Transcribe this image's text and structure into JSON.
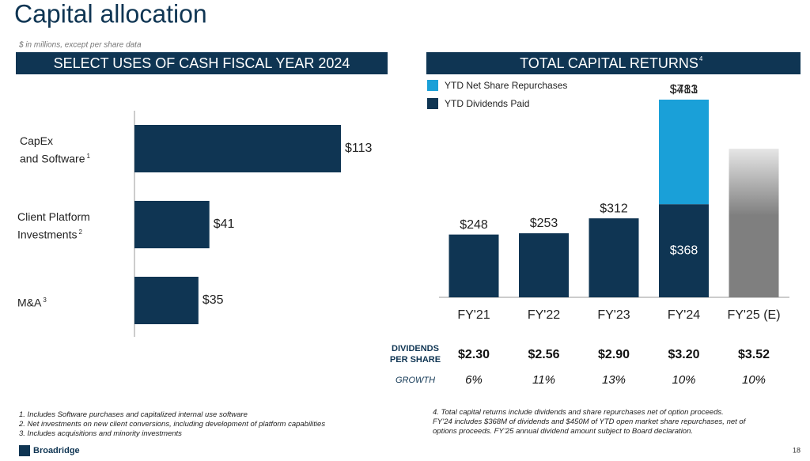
{
  "title": "Capital allocation",
  "subtitle": "$ in millions, except per share data",
  "chart_data": [
    {
      "type": "hbar",
      "title": "SELECT USES OF CASH FISCAL YEAR 2024",
      "categories": [
        "CapEx\nand Software",
        "Client Platform\nInvestments",
        "M&A"
      ],
      "category_notes": [
        "1",
        "2",
        "3"
      ],
      "values": [
        113,
        41,
        35
      ],
      "value_labels": [
        "$113",
        "$41",
        "$35"
      ],
      "color": "#0f3553"
    },
    {
      "type": "stacked_bar",
      "title": "TOTAL CAPITAL RETURNS",
      "title_note": "4",
      "categories": [
        "FY'21",
        "FY'22",
        "FY'23",
        "FY'24",
        "FY'25 (E)"
      ],
      "series": [
        {
          "name": "YTD Dividends Paid",
          "color": "#0f3553",
          "values": [
            248,
            253,
            312,
            368,
            null
          ],
          "value_labels": [
            "$248",
            "$253",
            "$312",
            "$368",
            null
          ]
        },
        {
          "name": "YTD Net Share Repurchases",
          "color": "#1aa0d8",
          "values": [
            null,
            null,
            null,
            413,
            null
          ],
          "value_labels": [
            null,
            null,
            null,
            "$413",
            null
          ]
        },
        {
          "color": "#808080",
          "values": [
            null,
            null,
            null,
            null,
            587
          ]
        }
      ],
      "totals": [
        null,
        null,
        null,
        781,
        null
      ],
      "total_labels": [
        null,
        null,
        null,
        "$781",
        null
      ],
      "legend": "top-left"
    }
  ],
  "dividends": {
    "label": "DIVIDENDS\nPER SHARE",
    "values": [
      "$2.30",
      "$2.56",
      "$2.90",
      "$3.20",
      "$3.52"
    ],
    "growth_label": "GROWTH",
    "growth": [
      "6%",
      "11%",
      "13%",
      "10%",
      "10%"
    ]
  },
  "footnotes": [
    "1. Includes Software purchases and capitalized internal use software",
    "2. Net investments on new client conversions, including development of platform capabilities",
    "3. Includes acquisitions and minority investments"
  ],
  "note": "4. Total capital returns include dividends and share repurchases net of option proceeds.\nFY’24 includes $368M of dividends and $450M of YTD open market share repurchases, net of\noptions proceeds. FY’25 annual dividend amount subject to Board declaration.",
  "logo": "Broadridge",
  "page_number": "18"
}
